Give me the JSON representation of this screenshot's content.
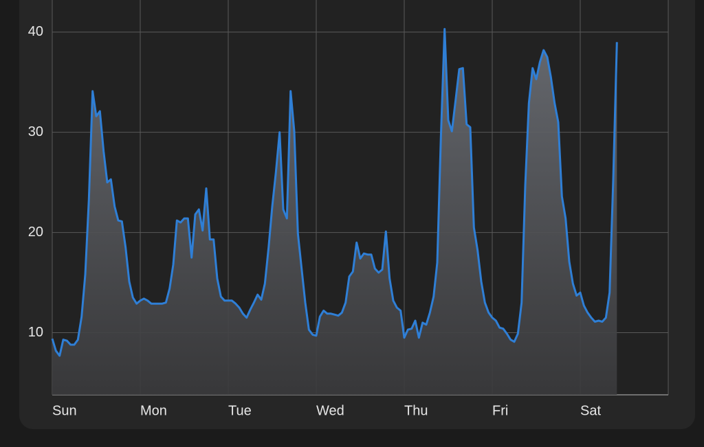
{
  "chart_data": {
    "type": "area",
    "x": [
      0,
      1,
      2,
      3,
      4,
      5,
      6,
      7,
      8,
      9,
      10,
      11,
      12,
      13,
      14,
      15,
      16,
      17,
      18,
      19,
      20,
      21,
      22,
      23,
      24,
      25,
      26,
      27,
      28,
      29,
      30,
      31,
      32,
      33,
      34,
      35,
      36,
      37,
      38,
      39,
      40,
      41,
      42,
      43,
      44,
      45,
      46,
      47,
      48,
      49,
      50,
      51,
      52,
      53,
      54,
      55,
      56,
      57,
      58,
      59,
      60,
      61,
      62,
      63,
      64,
      65,
      66,
      67,
      68,
      69,
      70,
      71,
      72,
      73,
      74,
      75,
      76,
      77,
      78,
      79,
      80,
      81,
      82,
      83,
      84,
      85,
      86,
      87,
      88,
      89,
      90,
      91,
      92,
      93,
      94,
      95,
      96,
      97,
      98,
      99,
      100,
      101,
      102,
      103,
      104,
      105,
      106,
      107,
      108,
      109,
      110,
      111,
      112,
      113,
      114,
      115,
      116,
      117,
      118,
      119,
      120,
      121,
      122,
      123,
      124,
      125,
      126,
      127,
      128,
      129,
      130,
      131,
      132,
      133,
      134,
      135,
      136,
      137,
      138,
      139,
      140,
      141,
      142,
      143,
      144,
      145,
      146,
      147,
      148,
      149,
      150,
      151,
      152,
      153,
      154
    ],
    "values": [
      9.4,
      8.2,
      7.7,
      9.3,
      9.2,
      8.8,
      8.8,
      9.3,
      11.6,
      15.8,
      23.3,
      34.1,
      31.6,
      32.1,
      28.1,
      25.0,
      25.3,
      22.6,
      21.2,
      21.1,
      18.5,
      15.1,
      13.5,
      12.9,
      13.2,
      13.4,
      13.2,
      12.9,
      12.9,
      12.9,
      12.9,
      13.0,
      14.4,
      16.8,
      21.2,
      21.0,
      21.4,
      21.4,
      17.5,
      21.8,
      22.3,
      20.2,
      24.4,
      19.3,
      19.3,
      15.4,
      13.6,
      13.2,
      13.2,
      13.2,
      12.9,
      12.5,
      11.9,
      11.5,
      12.3,
      13.0,
      13.8,
      13.3,
      14.9,
      18.5,
      22.6,
      26.0,
      30.0,
      22.3,
      21.4,
      34.1,
      30.1,
      19.9,
      16.4,
      13.0,
      10.3,
      9.8,
      9.7,
      11.6,
      12.2,
      11.9,
      11.9,
      11.8,
      11.7,
      12.0,
      13.0,
      15.6,
      16.1,
      19.0,
      17.4,
      17.9,
      17.8,
      17.8,
      16.4,
      16.0,
      16.3,
      20.1,
      15.4,
      13.2,
      12.5,
      12.2,
      9.5,
      10.3,
      10.4,
      11.2,
      9.5,
      11.0,
      10.8,
      12.0,
      13.6,
      17.0,
      29.5,
      40.3,
      31.2,
      30.1,
      33.2,
      36.3,
      36.4,
      30.8,
      30.5,
      20.5,
      18.2,
      15.1,
      13.0,
      12.0,
      11.5,
      11.2,
      10.5,
      10.4,
      9.9,
      9.3,
      9.1,
      9.9,
      13.0,
      24.7,
      32.9,
      36.4,
      35.3,
      37.0,
      38.2,
      37.5,
      35.5,
      32.9,
      31.0,
      23.6,
      21.4,
      17.1,
      14.9,
      13.7,
      14.0,
      12.7,
      12.0,
      11.5,
      11.1,
      11.2,
      11.1,
      11.5,
      14.0,
      25.3,
      39.0
    ],
    "color": "#2f7fd6",
    "xlim": [
      0,
      168
    ],
    "xticks": [
      {
        "value": 0,
        "label": "Sun"
      },
      {
        "value": 24,
        "label": "Mon"
      },
      {
        "value": 48,
        "label": "Tue"
      },
      {
        "value": 72,
        "label": "Wed"
      },
      {
        "value": 96,
        "label": "Thu"
      },
      {
        "value": 120,
        "label": "Fri"
      },
      {
        "value": 144,
        "label": "Sat"
      }
    ],
    "ylim": [
      3.8,
      43.2
    ],
    "yticks": [
      10,
      20,
      30,
      40
    ],
    "grid": true
  }
}
